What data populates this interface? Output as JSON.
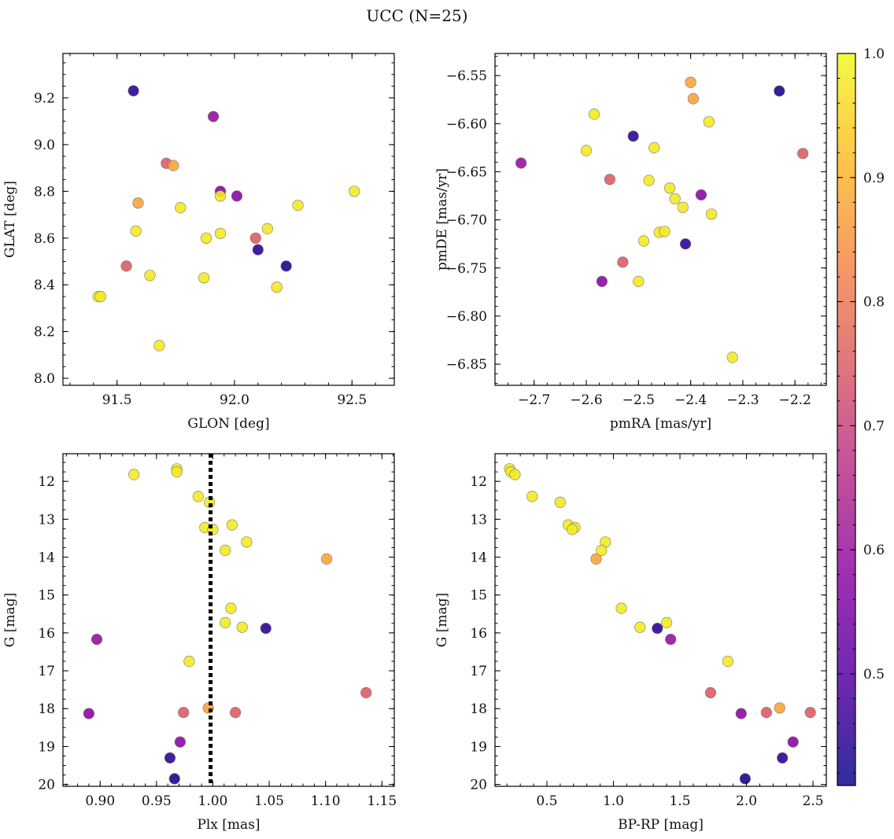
{
  "chart_data": {
    "title": "UCC (N=25)",
    "colorbar": {
      "range": [
        0.41,
        1.0
      ],
      "ticks": [
        "0.5",
        "0.6",
        "0.7",
        "0.8",
        "0.9",
        "1.0"
      ],
      "tick_values": [
        0.5,
        0.6,
        0.7,
        0.8,
        0.9,
        1.0
      ],
      "colormap": "plasma",
      "alpha": 0.85
    },
    "stars": [
      {
        "glon": 91.57,
        "glat": 9.23,
        "pmra": -2.51,
        "pmde": -6.613,
        "plx": 1.047,
        "g": 15.88,
        "bprp": 1.33,
        "p": 0.45
      },
      {
        "glon": 91.91,
        "glat": 9.12,
        "pmra": -2.725,
        "pmde": -6.641,
        "plx": 0.897,
        "g": 16.17,
        "bprp": 1.43,
        "p": 0.6
      },
      {
        "glon": 91.71,
        "glat": 8.92,
        "pmra": -2.555,
        "pmde": -6.658,
        "plx": 1.02,
        "g": 18.1,
        "bprp": 2.15,
        "p": 0.75
      },
      {
        "glon": 91.74,
        "glat": 8.91,
        "pmra": -2.395,
        "pmde": -6.574,
        "plx": 0.996,
        "g": 17.98,
        "bprp": 2.25,
        "p": 0.88
      },
      {
        "glon": 91.94,
        "glat": 8.8,
        "pmra": -2.38,
        "pmde": -6.674,
        "plx": 0.971,
        "g": 18.88,
        "bprp": 2.35,
        "p": 0.58
      },
      {
        "glon": 92.01,
        "glat": 8.78,
        "pmra": -2.57,
        "pmde": -6.764,
        "plx": 0.89,
        "g": 18.13,
        "bprp": 1.96,
        "p": 0.58
      },
      {
        "glon": 91.59,
        "glat": 8.75,
        "pmra": -2.4,
        "pmde": -6.557,
        "plx": 1.101,
        "g": 14.05,
        "bprp": 0.87,
        "p": 0.88
      },
      {
        "glon": 92.09,
        "glat": 8.6,
        "pmra": -2.185,
        "pmde": -6.631,
        "plx": 0.974,
        "g": 18.1,
        "bprp": 2.48,
        "p": 0.75
      },
      {
        "glon": 91.54,
        "glat": 8.48,
        "pmra": -2.53,
        "pmde": -6.744,
        "plx": 1.136,
        "g": 17.58,
        "bprp": 1.73,
        "p": 0.75
      },
      {
        "glon": 92.1,
        "glat": 8.55,
        "pmra": -2.41,
        "pmde": -6.725,
        "plx": 0.962,
        "g": 19.3,
        "bprp": 2.27,
        "p": 0.45
      },
      {
        "glon": 92.22,
        "glat": 8.48,
        "pmra": -2.23,
        "pmde": -6.566,
        "plx": 0.966,
        "g": 19.85,
        "bprp": 1.99,
        "p": 0.43
      },
      {
        "glon": 91.94,
        "glat": 8.78,
        "pmra": -2.585,
        "pmde": -6.59,
        "plx": 0.968,
        "g": 11.67,
        "bprp": 0.22,
        "p": 0.98
      },
      {
        "glon": 92.51,
        "glat": 8.8,
        "pmra": -2.6,
        "pmde": -6.628,
        "plx": 0.968,
        "g": 11.75,
        "bprp": 0.23,
        "p": 0.98
      },
      {
        "glon": 91.77,
        "glat": 8.73,
        "pmra": -2.47,
        "pmde": -6.625,
        "plx": 0.93,
        "g": 11.82,
        "bprp": 0.26,
        "p": 0.98
      },
      {
        "glon": 92.27,
        "glat": 8.74,
        "pmra": -2.365,
        "pmde": -6.598,
        "plx": 0.987,
        "g": 12.4,
        "bprp": 0.39,
        "p": 0.98
      },
      {
        "glon": 91.58,
        "glat": 8.63,
        "pmra": -2.48,
        "pmde": -6.659,
        "plx": 0.997,
        "g": 12.55,
        "bprp": 0.6,
        "p": 0.98
      },
      {
        "glon": 91.94,
        "glat": 8.62,
        "pmra": -2.44,
        "pmde": -6.667,
        "plx": 1.017,
        "g": 13.15,
        "bprp": 0.66,
        "p": 0.98
      },
      {
        "glon": 92.14,
        "glat": 8.64,
        "pmra": -2.43,
        "pmde": -6.678,
        "plx": 0.993,
        "g": 13.22,
        "bprp": 0.71,
        "p": 0.98
      },
      {
        "glon": 91.88,
        "glat": 8.6,
        "pmra": -2.415,
        "pmde": -6.687,
        "plx": 1.0,
        "g": 13.27,
        "bprp": 0.69,
        "p": 0.98
      },
      {
        "glon": 91.64,
        "glat": 8.44,
        "pmra": -2.36,
        "pmde": -6.694,
        "plx": 1.03,
        "g": 13.6,
        "bprp": 0.94,
        "p": 0.98
      },
      {
        "glon": 91.87,
        "glat": 8.43,
        "pmra": -2.46,
        "pmde": -6.713,
        "plx": 1.011,
        "g": 13.82,
        "bprp": 0.91,
        "p": 0.98
      },
      {
        "glon": 92.18,
        "glat": 8.39,
        "pmra": -2.45,
        "pmde": -6.712,
        "plx": 1.016,
        "g": 15.35,
        "bprp": 1.06,
        "p": 0.98
      },
      {
        "glon": 91.42,
        "glat": 8.35,
        "pmra": -2.49,
        "pmde": -6.722,
        "plx": 1.011,
        "g": 15.73,
        "bprp": 1.4,
        "p": 0.98
      },
      {
        "glon": 91.43,
        "glat": 8.35,
        "pmra": -2.5,
        "pmde": -6.764,
        "plx": 1.026,
        "g": 15.85,
        "bprp": 1.2,
        "p": 0.98
      },
      {
        "glon": 91.68,
        "glat": 8.14,
        "pmra": -2.32,
        "pmde": -6.843,
        "plx": 0.979,
        "g": 16.75,
        "bprp": 1.86,
        "p": 0.98
      }
    ],
    "panels": [
      {
        "id": "glon-glat",
        "type": "scatter",
        "x_field": "glon",
        "y_field": "glat",
        "xlabel": "GLON [deg]",
        "ylabel": "GLAT [deg]",
        "xlim": [
          91.27,
          92.68
        ],
        "ylim": [
          7.97,
          9.39
        ],
        "y_inverted": false,
        "xticks": [
          91.5,
          92.0,
          92.5
        ],
        "xtick_labels": [
          "91.5",
          "92.0",
          "92.5"
        ],
        "xminor": 0.1,
        "yticks": [
          8.0,
          8.2,
          8.4,
          8.6,
          8.8,
          9.0,
          9.2
        ],
        "ytick_labels": [
          "8.0",
          "8.2",
          "8.4",
          "8.6",
          "8.8",
          "9.0",
          "9.2"
        ],
        "yminor": 0.05
      },
      {
        "id": "pmra-pmde",
        "type": "scatter",
        "x_field": "pmra",
        "y_field": "pmde",
        "xlabel": "pmRA [mas/yr]",
        "ylabel": "pmDE [mas/yr]",
        "xlim": [
          -2.775,
          -2.14
        ],
        "ylim": [
          -6.872,
          -6.527
        ],
        "y_inverted": false,
        "xticks": [
          -2.7,
          -2.6,
          -2.5,
          -2.4,
          -2.3,
          -2.2
        ],
        "xtick_labels": [
          "−2.7",
          "−2.6",
          "−2.5",
          "−2.4",
          "−2.3",
          "−2.2"
        ],
        "xminor": 0.025,
        "yticks": [
          -6.85,
          -6.8,
          -6.75,
          -6.7,
          -6.65,
          -6.6,
          -6.55
        ],
        "ytick_labels": [
          "−6.85",
          "−6.80",
          "−6.75",
          "−6.70",
          "−6.65",
          "−6.60",
          "−6.55"
        ],
        "yminor": 0.01
      },
      {
        "id": "plx-g",
        "type": "scatter",
        "x_field": "plx",
        "y_field": "g",
        "xlabel": "Plx [mas]",
        "ylabel": "G [mag]",
        "xlim": [
          0.867,
          1.161
        ],
        "ylim": [
          20.05,
          11.27
        ],
        "y_inverted": true,
        "xticks": [
          0.9,
          0.95,
          1.0,
          1.05,
          1.1,
          1.15
        ],
        "xtick_labels": [
          "0.90",
          "0.95",
          "1.00",
          "1.05",
          "1.10",
          "1.15"
        ],
        "xminor": 0.01,
        "yticks": [
          12,
          13,
          14,
          15,
          16,
          17,
          18,
          19,
          20
        ],
        "ytick_labels": [
          "12",
          "13",
          "14",
          "15",
          "16",
          "17",
          "18",
          "19",
          "20"
        ],
        "yminor": 0.25,
        "vline": 0.998
      },
      {
        "id": "bprp-g",
        "type": "scatter",
        "x_field": "bprp",
        "y_field": "g",
        "xlabel": "BP-RP [mag]",
        "ylabel": "G [mag]",
        "xlim": [
          0.11,
          2.6
        ],
        "ylim": [
          20.05,
          11.27
        ],
        "y_inverted": true,
        "xticks": [
          0.5,
          1.0,
          1.5,
          2.0,
          2.5
        ],
        "xtick_labels": [
          "0.5",
          "1.0",
          "1.5",
          "2.0",
          "2.5"
        ],
        "xminor": 0.1,
        "yticks": [
          12,
          13,
          14,
          15,
          16,
          17,
          18,
          19,
          20
        ],
        "ytick_labels": [
          "12",
          "13",
          "14",
          "15",
          "16",
          "17",
          "18",
          "19",
          "20"
        ],
        "yminor": 0.25
      }
    ]
  }
}
